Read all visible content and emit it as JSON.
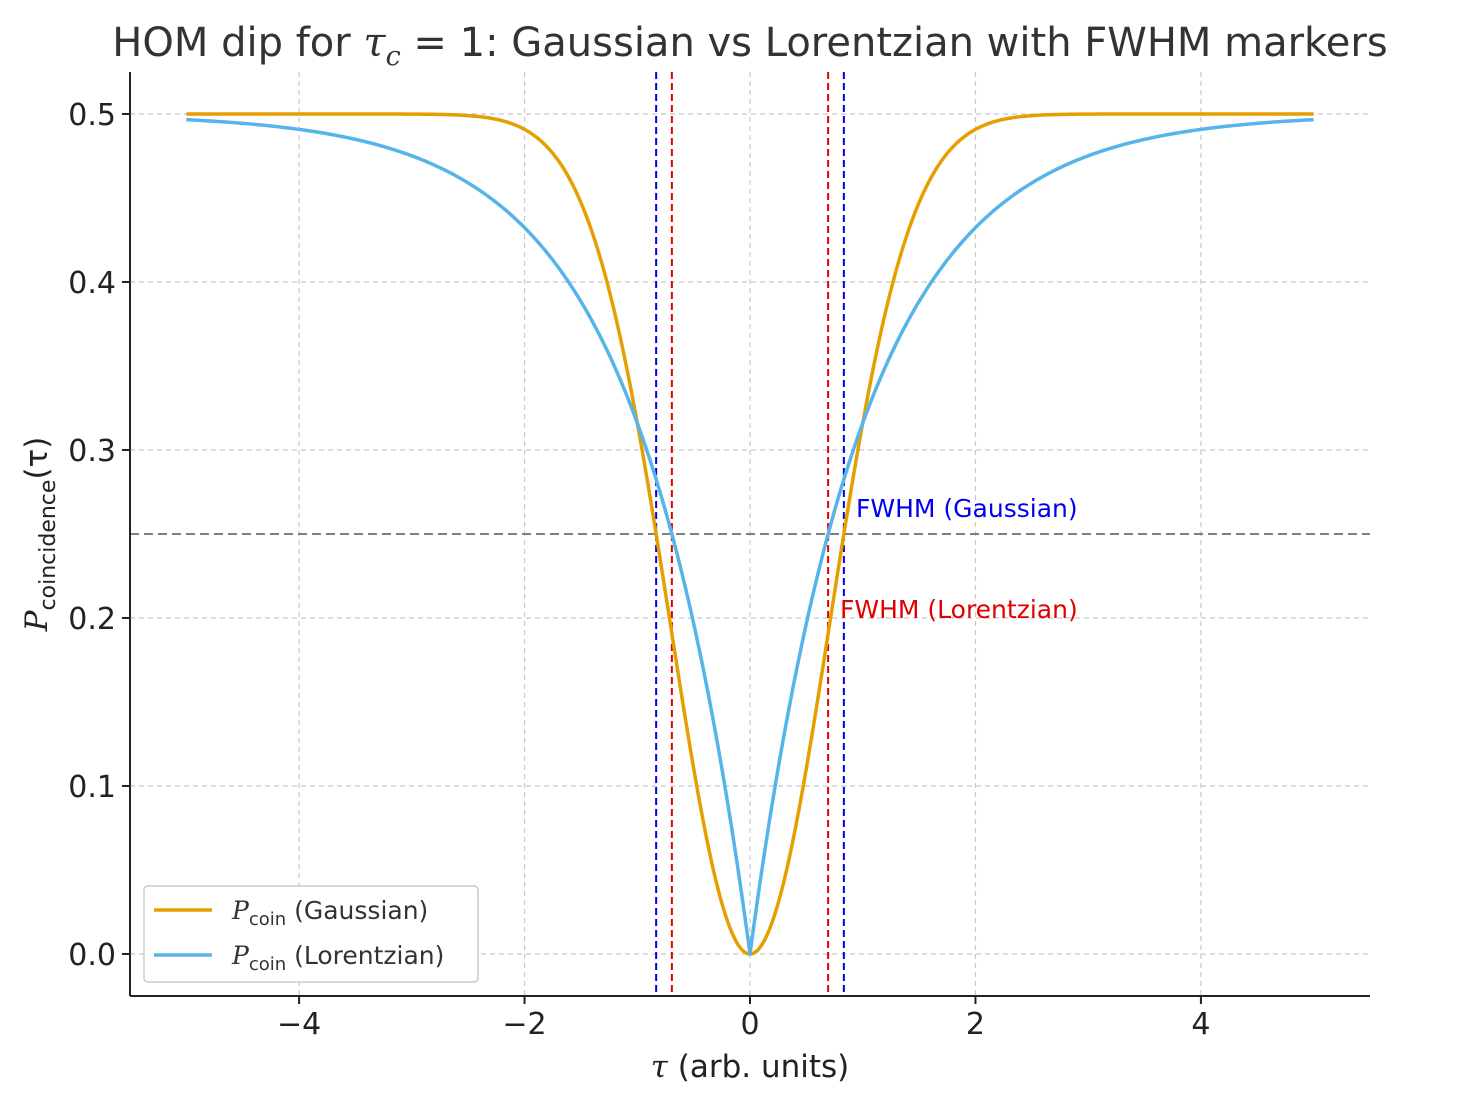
{
  "chart_data": {
    "type": "line",
    "title_parts": [
      "HOM dip for ",
      "τ",
      "c",
      " = 1: Gaussian vs Lorentzian with FWHM markers"
    ],
    "xlabel_parts": [
      "τ",
      " (arb. units)"
    ],
    "ylabel_parts": [
      "P",
      "coincidence",
      "(τ)"
    ],
    "xlim": [
      -5.5,
      5.5
    ],
    "ylim": [
      -0.025,
      0.525
    ],
    "x_ticks": [
      -4,
      -2,
      0,
      2,
      4
    ],
    "x_tick_labels": [
      "−4",
      "−2",
      "0",
      "2",
      "4"
    ],
    "y_ticks": [
      0.0,
      0.1,
      0.2,
      0.3,
      0.4,
      0.5
    ],
    "y_tick_labels": [
      "0.0",
      "0.1",
      "0.2",
      "0.3",
      "0.4",
      "0.5"
    ],
    "grid": true,
    "legend_position": "lower-left",
    "x_range": [
      -5,
      5
    ],
    "series": [
      {
        "name_parts": [
          "P",
          "coin",
          " (Gaussian)"
        ],
        "color": "#E69F00",
        "model": "gaussian",
        "tau_c": 1,
        "sample_points": [
          [
            -5,
            0.5
          ],
          [
            -2,
            0.491
          ],
          [
            -1,
            0.316
          ],
          [
            -0.5,
            0.111
          ],
          [
            0,
            0.0
          ],
          [
            0.5,
            0.111
          ],
          [
            1,
            0.316
          ],
          [
            2,
            0.491
          ],
          [
            5,
            0.5
          ]
        ]
      },
      {
        "name_parts": [
          "P",
          "coin",
          " (Lorentzian)"
        ],
        "color": "#56B4E9",
        "model": "lorentzian",
        "tau_c": 1,
        "sample_points": [
          [
            -5,
            0.497
          ],
          [
            -2,
            0.432
          ],
          [
            -1,
            0.316
          ],
          [
            -0.5,
            0.197
          ],
          [
            0,
            0.0
          ],
          [
            0.5,
            0.197
          ],
          [
            1,
            0.316
          ],
          [
            2,
            0.432
          ],
          [
            5,
            0.497
          ]
        ]
      }
    ],
    "reference_lines": {
      "half_max": {
        "y": 0.25,
        "color": "#7f7f7f"
      },
      "fwhm_gaussian": {
        "x": [
          -0.8326,
          0.8326
        ],
        "color": "#0000ee"
      },
      "fwhm_lorentzian": {
        "x": [
          -0.6931,
          0.6931
        ],
        "color": "#e00000"
      }
    },
    "annotations": [
      {
        "text": "FWHM (Gaussian)",
        "x": 0.8326,
        "y": 0.26,
        "color": "#0000ee"
      },
      {
        "text": "FWHM (Lorentzian)",
        "x": 0.6931,
        "y": 0.2,
        "color": "#e00000"
      }
    ]
  }
}
